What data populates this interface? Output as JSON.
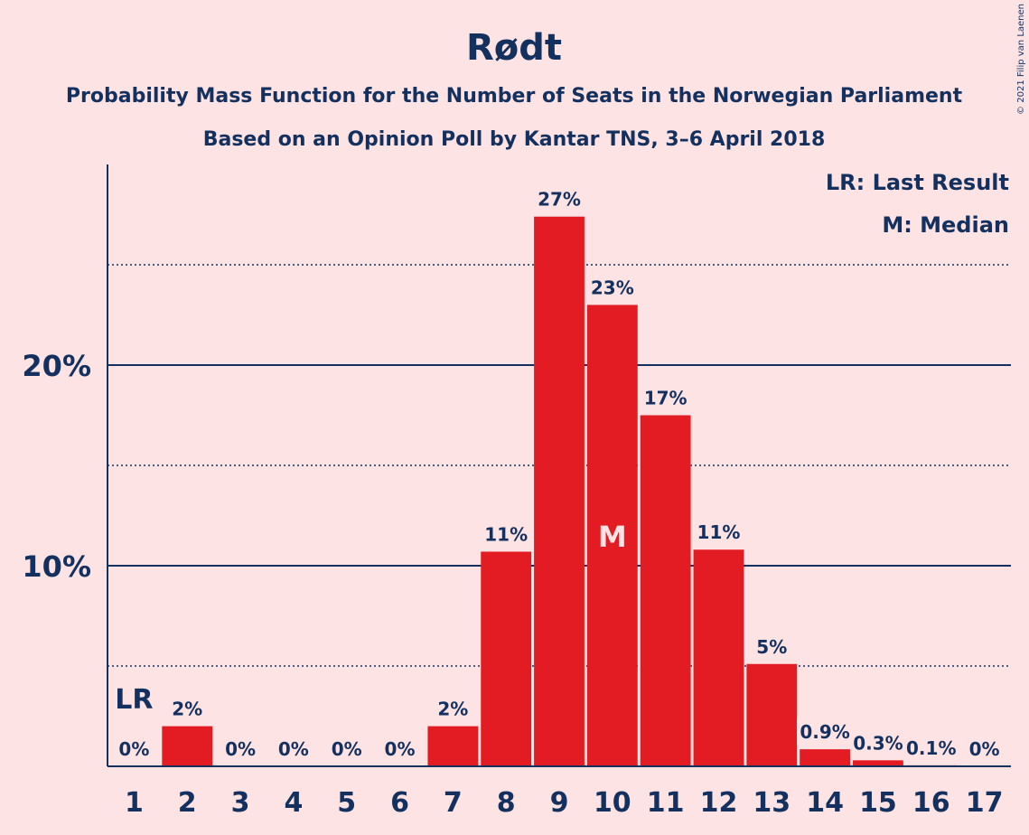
{
  "chart_data": {
    "type": "bar",
    "title": "Rødt",
    "subtitle": "Probability Mass Function for the Number of Seats in the Norwegian Parliament",
    "subtitle2": "Based on an Opinion Poll by Kantar TNS, 3–6 April 2018",
    "categories": [
      "1",
      "2",
      "3",
      "4",
      "5",
      "6",
      "7",
      "8",
      "9",
      "10",
      "11",
      "12",
      "13",
      "14",
      "15",
      "16",
      "17"
    ],
    "values": [
      0,
      2.0,
      0,
      0,
      0,
      0,
      2.0,
      10.7,
      27.4,
      23.0,
      17.5,
      10.8,
      5.1,
      0.85,
      0.3,
      0.05,
      0
    ],
    "data_labels": [
      "0%",
      "2%",
      "0%",
      "0%",
      "0%",
      "0%",
      "2%",
      "11%",
      "27%",
      "23%",
      "17%",
      "11%",
      "5%",
      "0.9%",
      "0.3%",
      "0.1%",
      "0%"
    ],
    "ylim": [
      0,
      30
    ],
    "yticks": [
      {
        "value": 10,
        "label": "10%"
      },
      {
        "value": 20,
        "label": "20%"
      }
    ],
    "minor_gridlines": [
      5,
      15,
      25
    ],
    "grid": true,
    "legend_position": "top-right",
    "legend": [
      "LR: Last Result",
      "M: Median"
    ],
    "last_result": {
      "category": "1",
      "label": "LR"
    },
    "median": {
      "category": "10",
      "label": "M"
    },
    "bar_color": "#e31c23",
    "axis_color": "#14305e",
    "background_color": "#fde3e4"
  },
  "copyright": "© 2021 Filip van Laenen"
}
